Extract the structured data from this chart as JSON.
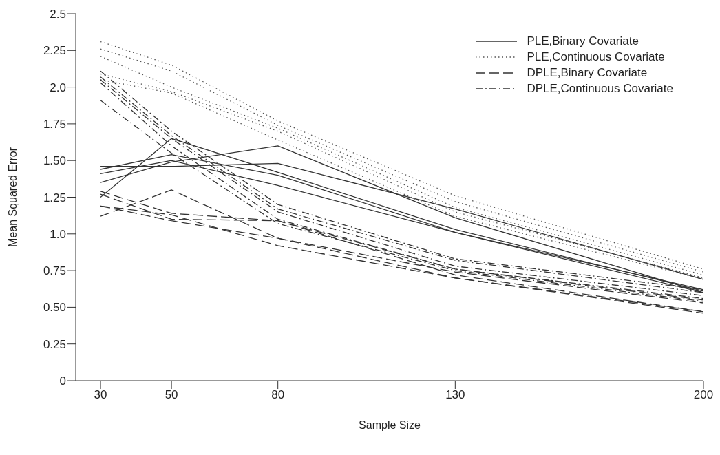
{
  "chart_data": {
    "type": "line",
    "xlabel": "Sample Size",
    "ylabel": "Mean Squared Error",
    "x": [
      30,
      50,
      80,
      130,
      200
    ],
    "xlim": [
      23,
      200
    ],
    "xticks": [
      30,
      50,
      80,
      130,
      200
    ],
    "ylim": [
      0,
      2.5
    ],
    "yticks": [
      0,
      0.25,
      {
        "value": 0.5,
        "label": "0.50"
      },
      0.75,
      {
        "value": 1,
        "label": "1.0"
      },
      1.25,
      {
        "value": 1.5,
        "label": "1.50"
      },
      1.75,
      {
        "value": 2,
        "label": "2.0"
      },
      2.25,
      2.5
    ],
    "legend": "top right",
    "marker": "none",
    "series": [
      {
        "name": "PLE,Binary Covariate",
        "color": "#333333",
        "line_style": "solid",
        "values": [
          1.25,
          1.65,
          1.42,
          1.03,
          0.61
        ]
      },
      {
        "color": "#333333",
        "line_style": "solid",
        "values": [
          1.46,
          1.46,
          1.48,
          1.17,
          0.69
        ]
      },
      {
        "color": "#333333",
        "line_style": "solid",
        "values": [
          1.35,
          1.49,
          1.6,
          1.11,
          0.6
        ]
      },
      {
        "color": "#333333",
        "line_style": "solid",
        "values": [
          1.44,
          1.54,
          1.4,
          1.01,
          0.62
        ]
      },
      {
        "color": "#333333",
        "line_style": "solid",
        "values": [
          1.41,
          1.5,
          1.33,
          1.01,
          0.6
        ]
      },
      {
        "name": "PLE,Continuous Covariate",
        "color": "#555555",
        "line_style": "dotted",
        "values": [
          2.31,
          2.15,
          1.77,
          1.26,
          0.76
        ]
      },
      {
        "color": "#555555",
        "line_style": "dotted",
        "values": [
          2.26,
          2.11,
          1.74,
          1.22,
          0.74
        ]
      },
      {
        "color": "#555555",
        "line_style": "dotted",
        "values": [
          2.21,
          2.0,
          1.72,
          1.18,
          0.72
        ]
      },
      {
        "color": "#555555",
        "line_style": "dotted",
        "values": [
          2.09,
          1.97,
          1.7,
          1.15,
          0.7
        ]
      },
      {
        "color": "#555555",
        "line_style": "dotted",
        "values": [
          2.05,
          1.96,
          1.64,
          1.12,
          0.69
        ]
      },
      {
        "name": "DPLE,Binary Covariate",
        "color": "#333333",
        "line_style": "dashed",
        "values": [
          1.12,
          1.3,
          0.97,
          0.74,
          0.53
        ]
      },
      {
        "color": "#333333",
        "line_style": "dashed",
        "values": [
          1.29,
          1.14,
          1.09,
          0.76,
          0.55
        ]
      },
      {
        "color": "#333333",
        "line_style": "dashed",
        "values": [
          1.27,
          1.1,
          1.09,
          0.72,
          0.47
        ]
      },
      {
        "color": "#333333",
        "line_style": "dashed",
        "values": [
          1.19,
          1.13,
          0.92,
          0.7,
          0.46
        ]
      },
      {
        "color": "#333333",
        "line_style": "dashed",
        "values": [
          1.19,
          1.09,
          0.97,
          0.7,
          0.47
        ]
      },
      {
        "name": "DPLE,Continuous Covariate",
        "color": "#333333",
        "line_style": "dashdot",
        "values": [
          2.11,
          1.7,
          1.2,
          0.83,
          0.62
        ]
      },
      {
        "color": "#333333",
        "line_style": "dashdot",
        "values": [
          2.07,
          1.67,
          1.17,
          0.82,
          0.6
        ]
      },
      {
        "color": "#333333",
        "line_style": "dashdot",
        "values": [
          2.05,
          1.65,
          1.15,
          0.78,
          0.58
        ]
      },
      {
        "color": "#333333",
        "line_style": "dashdot",
        "values": [
          2.03,
          1.6,
          1.1,
          0.76,
          0.56
        ]
      },
      {
        "color": "#333333",
        "line_style": "dashdot",
        "values": [
          1.91,
          1.55,
          1.07,
          0.75,
          0.54
        ]
      }
    ]
  }
}
